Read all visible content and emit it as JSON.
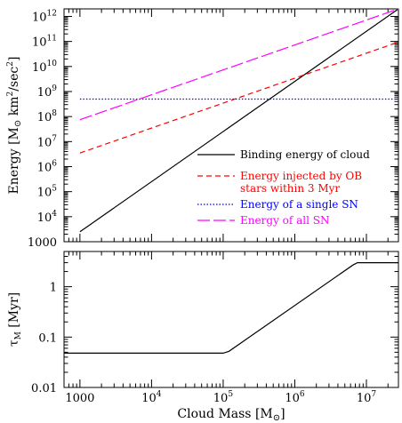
{
  "chart_data": [
    {
      "type": "line",
      "ylabel_main": "Energy [M",
      "ylabel_sub": "⊙",
      "ylabel_rest": " km",
      "ylabel_sup1": "2",
      "ylabel_rest2": "/sec",
      "ylabel_sup2": "2",
      "ylabel_close": "]",
      "xlog": true,
      "ylog": true,
      "xlim": [
        600,
        28000000
      ],
      "ylim": [
        1000,
        2000000000000
      ],
      "yticks": [
        {
          "value": 1000,
          "base": "1000",
          "exp": ""
        },
        {
          "value": 10000,
          "base": "10",
          "exp": "4"
        },
        {
          "value": 100000,
          "base": "10",
          "exp": "5"
        },
        {
          "value": 1000000,
          "base": "10",
          "exp": "6"
        },
        {
          "value": 10000000,
          "base": "10",
          "exp": "7"
        },
        {
          "value": 100000000,
          "base": "10",
          "exp": "8"
        },
        {
          "value": 1000000000,
          "base": "10",
          "exp": "9"
        },
        {
          "value": 10000000000,
          "base": "10",
          "exp": "10"
        },
        {
          "value": 100000000000,
          "base": "10",
          "exp": "11"
        },
        {
          "value": 1000000000000,
          "base": "10",
          "exp": "12"
        }
      ],
      "series": [
        {
          "name": "Binding energy of cloud",
          "color": "#000000",
          "dash": "",
          "x": [
            1000,
            28000000
          ],
          "y": [
            2500,
            2000000000000
          ]
        },
        {
          "name": "Energy injected by OB",
          "name_line2": "stars within 3 Myr",
          "color": "#ff0000",
          "dash": "6,4",
          "x": [
            1000,
            28000000
          ],
          "y": [
            3500000,
            95000000000
          ]
        },
        {
          "name": "Energy of a single SN",
          "color": "#0000ff",
          "dash": "1.5,2",
          "x": [
            1000,
            28000000
          ],
          "y": [
            500000000,
            500000000
          ]
        },
        {
          "name": "Energy of all SN",
          "color": "#ff00ff",
          "dash": "14,4",
          "x": [
            1000,
            28000000
          ],
          "y": [
            75000000,
            2000000000000
          ]
        }
      ]
    },
    {
      "type": "line",
      "xlabel_main": "Cloud Mass [M",
      "xlabel_sub": "⊙",
      "xlabel_close": "]",
      "ylabel_main": "τ",
      "ylabel_sub": "M",
      "ylabel_rest": " [Myr]",
      "xlog": true,
      "ylog": true,
      "xlim": [
        600,
        28000000
      ],
      "ylim": [
        0.01,
        5
      ],
      "xticks": [
        {
          "value": 1000,
          "base": "1000",
          "exp": ""
        },
        {
          "value": 10000,
          "base": "10",
          "exp": "4"
        },
        {
          "value": 100000,
          "base": "10",
          "exp": "5"
        },
        {
          "value": 1000000,
          "base": "10",
          "exp": "6"
        },
        {
          "value": 10000000,
          "base": "10",
          "exp": "7"
        }
      ],
      "yticks": [
        {
          "value": 0.01,
          "label": "0.01"
        },
        {
          "value": 0.1,
          "label": "0.1"
        },
        {
          "value": 1,
          "label": "1"
        }
      ],
      "series": [
        {
          "color": "#000000",
          "dash": "",
          "x": [
            600,
            100000,
            120000,
            6500000,
            7500000,
            28000000
          ],
          "y": [
            0.048,
            0.048,
            0.052,
            2.7,
            3,
            3
          ]
        }
      ]
    }
  ]
}
